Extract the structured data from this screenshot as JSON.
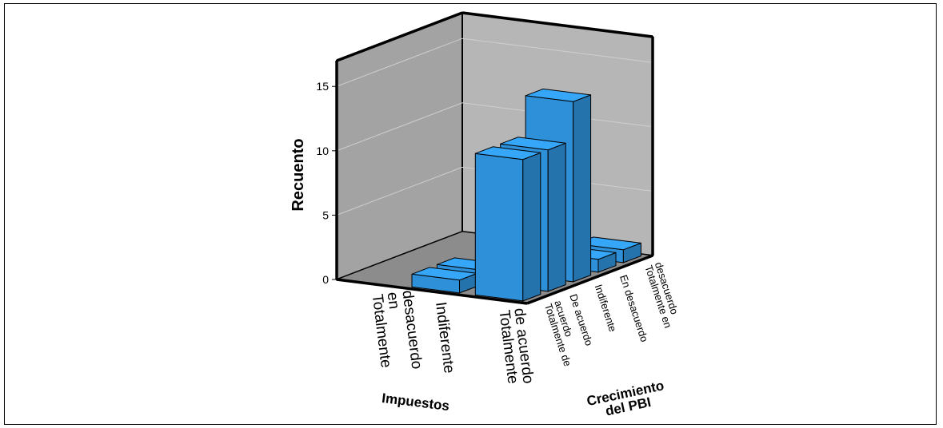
{
  "chart_data": {
    "type": "bar",
    "variant": "3d-clustered",
    "ylabel": "Recuento",
    "x_axis_title": "Impuestos",
    "z_axis_title": [
      "Crecimiento",
      "del PBI"
    ],
    "x_categories": [
      [
        "Totalmente",
        "en",
        "desacuerdo"
      ],
      [
        "Indiferente"
      ],
      [
        "Totalmente",
        "de acuerdo"
      ]
    ],
    "z_categories": [
      [
        "Totalmente de",
        "acuerdo"
      ],
      [
        "De acuerdo"
      ],
      [
        "Indiferente"
      ],
      [
        "En desacuerdo"
      ],
      [
        "Totalmente en",
        "desacuerdo"
      ]
    ],
    "yticks": [
      0,
      5,
      10,
      15
    ],
    "ylim": [
      0,
      17
    ],
    "grid": true,
    "bar_color": "#2e90d8",
    "bars": [
      {
        "x": "Indiferente",
        "z": "Totalmente de acuerdo",
        "value": 1
      },
      {
        "x": "Indiferente",
        "z": "De acuerdo",
        "value": 1
      },
      {
        "x": "Totalmente de acuerdo",
        "z": "Totalmente de acuerdo",
        "value": 11
      },
      {
        "x": "Totalmente de acuerdo",
        "z": "De acuerdo",
        "value": 11
      },
      {
        "x": "Totalmente de acuerdo",
        "z": "Indiferente",
        "value": 14
      },
      {
        "x": "Totalmente de acuerdo",
        "z": "En desacuerdo",
        "value": 1
      },
      {
        "x": "Totalmente de acuerdo",
        "z": "Totalmente en desacuerdo",
        "value": 1
      }
    ]
  }
}
